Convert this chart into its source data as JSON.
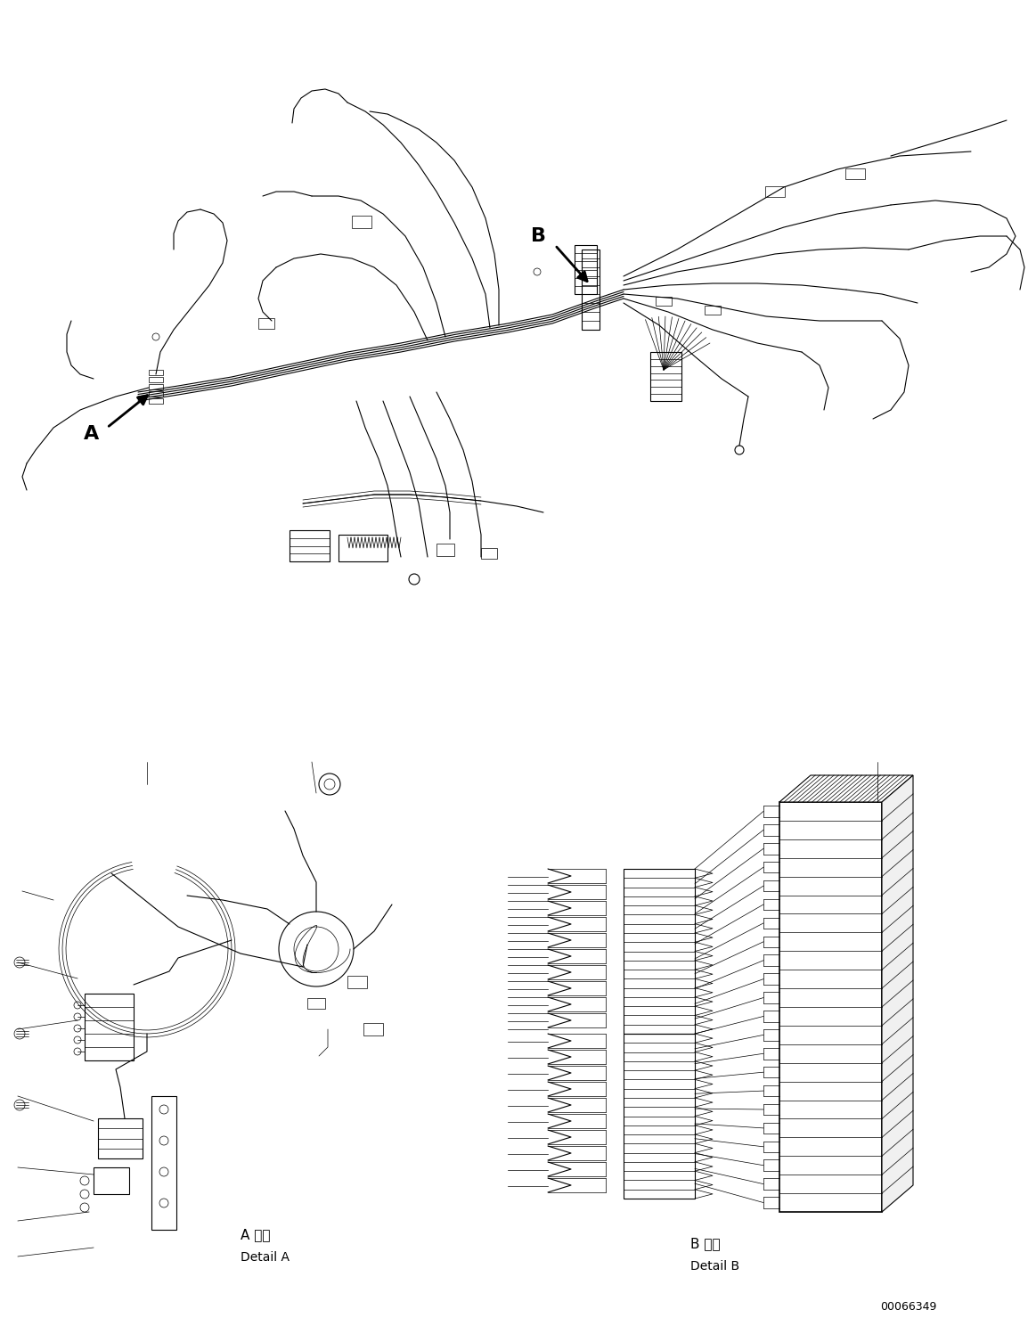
{
  "part_number": "00066349",
  "background_color": "#ffffff",
  "line_color": "#000000",
  "detail_A_jp": "A 詳細",
  "detail_A_en": "Detail A",
  "detail_B_jp": "B 詳細",
  "detail_B_en": "Detail B",
  "fig_width": 11.63,
  "fig_height": 14.88,
  "dpi": 100,
  "imgw": 1163,
  "imgh": 1488
}
